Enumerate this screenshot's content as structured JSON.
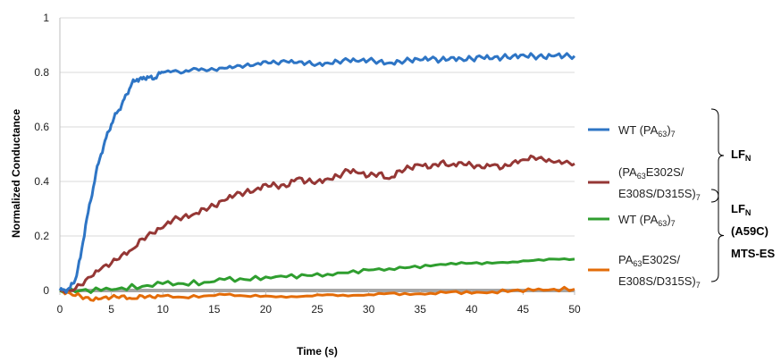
{
  "chart_data": {
    "type": "line",
    "title": "",
    "xlabel": "Time (s)",
    "ylabel": "Normalized Conductance",
    "xlim": [
      0,
      50
    ],
    "ylim": [
      0,
      1
    ],
    "xticks": [
      "0",
      "5",
      "10",
      "15",
      "20",
      "25",
      "30",
      "35",
      "40",
      "45",
      "50"
    ],
    "yticks": [
      "0",
      "0.2",
      "0.4",
      "0.6",
      "0.8",
      "1"
    ],
    "grid": "horizontal",
    "legend_position": "right",
    "series": [
      {
        "name": "WT (PA63)7",
        "color": "#2e75c5",
        "x": [
          0,
          0.5,
          1,
          1.5,
          2,
          2.5,
          3,
          3.5,
          4,
          4.5,
          5,
          5.5,
          6,
          6.5,
          7,
          7.5,
          8,
          8.5,
          9,
          9.5,
          10,
          11,
          12,
          13,
          14,
          15,
          16,
          17,
          18,
          19,
          20,
          21,
          22,
          23,
          24,
          25,
          26,
          27,
          28,
          29,
          30,
          31,
          32,
          33,
          34,
          35,
          36,
          37,
          38,
          39,
          40,
          41,
          42,
          43,
          44,
          45,
          46,
          47,
          48,
          49,
          50
        ],
        "y": [
          0,
          0,
          0.01,
          0.04,
          0.12,
          0.24,
          0.33,
          0.43,
          0.5,
          0.56,
          0.61,
          0.65,
          0.68,
          0.72,
          0.76,
          0.775,
          0.775,
          0.785,
          0.775,
          0.79,
          0.8,
          0.805,
          0.8,
          0.815,
          0.81,
          0.81,
          0.815,
          0.82,
          0.825,
          0.83,
          0.84,
          0.835,
          0.84,
          0.835,
          0.835,
          0.83,
          0.835,
          0.84,
          0.845,
          0.84,
          0.845,
          0.84,
          0.835,
          0.84,
          0.845,
          0.845,
          0.85,
          0.845,
          0.855,
          0.85,
          0.85,
          0.855,
          0.85,
          0.855,
          0.86,
          0.865,
          0.86,
          0.855,
          0.86,
          0.86,
          0.86
        ]
      },
      {
        "name": "(PA63E302S/E308S/D315S)7",
        "color": "#953735",
        "x": [
          0,
          1,
          2,
          3,
          4,
          5,
          6,
          7,
          8,
          9,
          10,
          11,
          12,
          13,
          14,
          15,
          16,
          17,
          18,
          19,
          20,
          21,
          22,
          23,
          24,
          25,
          26,
          27,
          28,
          29,
          30,
          31,
          32,
          33,
          34,
          35,
          36,
          37,
          38,
          39,
          40,
          41,
          42,
          43,
          44,
          45,
          46,
          47,
          48,
          49,
          50
        ],
        "y": [
          0,
          0,
          0.02,
          0.05,
          0.08,
          0.1,
          0.13,
          0.15,
          0.19,
          0.21,
          0.23,
          0.26,
          0.27,
          0.28,
          0.3,
          0.31,
          0.33,
          0.35,
          0.36,
          0.37,
          0.39,
          0.385,
          0.38,
          0.41,
          0.4,
          0.4,
          0.41,
          0.42,
          0.44,
          0.43,
          0.42,
          0.43,
          0.41,
          0.44,
          0.45,
          0.46,
          0.45,
          0.47,
          0.46,
          0.47,
          0.46,
          0.45,
          0.46,
          0.45,
          0.47,
          0.48,
          0.49,
          0.48,
          0.47,
          0.47,
          0.465
        ]
      },
      {
        "name": "WT (PA63)7",
        "color": "#2f9e2f",
        "x": [
          0,
          2,
          4,
          6,
          8,
          10,
          12,
          14,
          16,
          18,
          20,
          22,
          24,
          26,
          28,
          30,
          32,
          34,
          36,
          38,
          40,
          42,
          44,
          46,
          48,
          50
        ],
        "y": [
          0,
          0,
          0,
          0.01,
          0.015,
          0.025,
          0.025,
          0.03,
          0.04,
          0.04,
          0.05,
          0.05,
          0.055,
          0.06,
          0.065,
          0.075,
          0.08,
          0.085,
          0.09,
          0.1,
          0.1,
          0.1,
          0.105,
          0.11,
          0.115,
          0.115
        ]
      },
      {
        "name": "PA63E302S/E308S/D315S)7",
        "color": "#e36c09",
        "x": [
          0,
          1,
          2,
          3,
          4,
          5,
          6,
          7,
          8,
          9,
          10,
          12,
          14,
          16,
          18,
          20,
          22,
          24,
          26,
          28,
          30,
          32,
          34,
          36,
          38,
          40,
          42,
          44,
          46,
          48,
          50
        ],
        "y": [
          0,
          -0.01,
          -0.02,
          -0.035,
          -0.03,
          -0.025,
          -0.02,
          -0.03,
          -0.02,
          -0.025,
          -0.02,
          -0.025,
          -0.02,
          -0.015,
          -0.02,
          -0.02,
          -0.025,
          -0.02,
          -0.015,
          -0.02,
          -0.015,
          -0.01,
          -0.015,
          -0.01,
          -0.005,
          -0.01,
          -0.005,
          0,
          0,
          0.005,
          0.005
        ]
      }
    ],
    "legend": [
      {
        "lines": [
          "WT (PA",
          "63",
          ")",
          "7"
        ]
      },
      {
        "lines": [
          "(PA",
          "63",
          "E302S/"
        ],
        "line2": [
          "E308S/D315S)",
          "7"
        ]
      },
      {
        "lines": [
          "WT (PA",
          "63",
          ")",
          "7"
        ]
      },
      {
        "lines": [
          "PA",
          "63",
          "E302S/"
        ],
        "line2": [
          "E308S/D315S)",
          "7"
        ]
      }
    ],
    "groups": [
      {
        "label": "LF",
        "sub": "N"
      },
      {
        "label": "LF",
        "sub": "N",
        "line2": "(A59C)",
        "line3": "MTS-ES"
      }
    ]
  }
}
